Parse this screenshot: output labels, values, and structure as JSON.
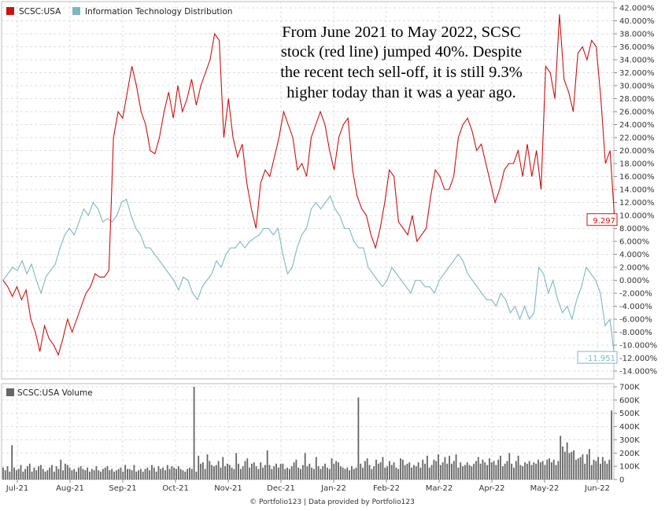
{
  "chart_data": [
    {
      "type": "line",
      "title": "",
      "xlabel": "",
      "ylabel": "",
      "ylim": [
        -14,
        42
      ],
      "y_tick_step": 2,
      "y_tick_suffix": "%",
      "y_tick_decimals": 3,
      "x_tick_labels": [
        "Jul-21",
        "Aug-21",
        "Sep-21",
        "Oct-21",
        "Nov-21",
        "Dec-21",
        "Jan-22",
        "Feb-22",
        "Mar-22",
        "Apr-22",
        "May-22",
        "Jun-22"
      ],
      "legend": "top-left",
      "grid": true,
      "series": [
        {
          "name": "SCSC:USA",
          "color": "#cc1111",
          "end_label": "9.297",
          "values": [
            0,
            -1,
            -2.5,
            -1,
            -3,
            -1.5,
            -6,
            -8,
            -11,
            -7,
            -9,
            -10,
            -11.5,
            -9,
            -6,
            -8,
            -6,
            -4,
            -2,
            -1,
            1,
            0.5,
            0.5,
            1.5,
            22,
            26,
            25,
            29,
            33,
            30,
            26,
            24,
            20,
            19.5,
            22,
            26,
            29,
            25,
            30,
            26,
            28,
            31,
            27,
            30,
            32,
            34,
            38,
            37,
            22,
            28,
            22,
            19,
            21,
            15,
            11,
            8,
            15,
            17,
            16,
            19,
            22,
            26,
            24,
            22,
            17,
            18,
            16,
            22,
            24,
            26,
            24,
            20,
            17,
            22,
            24,
            25,
            17,
            13,
            11,
            10,
            7,
            5,
            8,
            12,
            17,
            16,
            9,
            8,
            7,
            10,
            6,
            7,
            8,
            13,
            17,
            16,
            14,
            14,
            16,
            22,
            24,
            25,
            23,
            20,
            21,
            18,
            15,
            12,
            14,
            17,
            18,
            18,
            20,
            16,
            21,
            16,
            20,
            14,
            33,
            32,
            28,
            41,
            31,
            29,
            26,
            35,
            36,
            34,
            37,
            36,
            28,
            18,
            20,
            9.3
          ],
          "label_in_chart": "SCSC:USA"
        },
        {
          "name": "Information Technology Distribution",
          "color": "#7fb7bf",
          "end_label": "-11.951",
          "values": [
            0,
            1,
            2,
            1.5,
            3,
            1,
            2.5,
            0,
            -2,
            0.5,
            1.5,
            2.5,
            5,
            7,
            8,
            7,
            9,
            11,
            10,
            12,
            11,
            9,
            9.5,
            9,
            10,
            12,
            12.5,
            10,
            8,
            7,
            5,
            5,
            4,
            3,
            2,
            1,
            0,
            -1.5,
            0.5,
            0,
            -2,
            -3,
            -1,
            0,
            1,
            3,
            2,
            4,
            5,
            5,
            6,
            5,
            6,
            6.5,
            7,
            8,
            8,
            7,
            8,
            4,
            1,
            2,
            5,
            7,
            8,
            11,
            12,
            11,
            12,
            13,
            11,
            10,
            8,
            8,
            6,
            5,
            5,
            2,
            1,
            0,
            -1,
            0,
            2,
            1,
            0,
            -1,
            -2,
            0,
            0,
            -1,
            -1,
            -2,
            0,
            1,
            2,
            3,
            4,
            3,
            1,
            0,
            -1,
            -2,
            -3,
            -3,
            -4,
            -2,
            -3,
            -5,
            -4,
            -6,
            -4,
            -6,
            -5,
            2,
            1,
            -2,
            0,
            -3,
            -5,
            -4,
            -6,
            -3,
            -1,
            2,
            1,
            0,
            -2,
            -7,
            -6,
            -11.95
          ]
        }
      ],
      "annotation": [
        "From June 2021 to May 2022, SCSC",
        "stock (red line) jumped 40%. Despite",
        "the recent tech sell-off, it is still 9.3%",
        "higher today than it was a year ago."
      ]
    },
    {
      "type": "bar",
      "title": "",
      "legend": "top-left",
      "series_name": "SCSC:USA Volume",
      "color": "#666666",
      "ylim": [
        0,
        700000
      ],
      "y_tick_labels": [
        "0",
        "100K",
        "200K",
        "300K",
        "400K",
        "500K",
        "600K",
        "700K"
      ],
      "values": [
        90,
        70,
        100,
        60,
        260,
        90,
        70,
        80,
        110,
        60,
        80,
        100,
        120,
        60,
        90,
        70,
        100,
        110,
        80,
        60,
        70,
        90,
        110,
        60,
        100,
        80,
        150,
        70,
        120,
        110,
        90,
        70,
        80,
        60,
        90,
        100,
        80,
        70,
        90,
        60,
        80,
        70,
        100,
        70,
        60,
        80,
        90,
        100,
        70,
        80,
        60,
        70,
        80,
        90,
        60,
        110,
        80,
        80,
        70,
        110,
        60,
        70,
        80,
        60,
        80,
        90,
        70,
        110,
        90,
        60,
        100,
        80,
        90,
        70,
        110,
        80,
        100,
        90,
        80,
        100,
        80,
        70,
        60,
        80,
        90,
        80,
        700,
        60,
        180,
        120,
        130,
        80,
        190,
        140,
        110,
        100,
        110,
        140,
        90,
        170,
        100,
        120,
        110,
        90,
        80,
        200,
        120,
        80,
        100,
        140,
        160,
        90,
        120,
        130,
        100,
        80,
        130,
        90,
        110,
        220,
        110,
        80,
        100,
        120,
        90,
        120,
        120,
        80,
        90,
        80,
        100,
        130,
        150,
        90,
        80,
        110,
        200,
        100,
        120,
        90,
        80,
        170,
        100,
        80,
        100,
        120,
        90,
        80,
        160,
        120,
        140,
        130,
        100,
        90,
        80,
        90,
        70,
        100,
        80,
        90,
        620,
        120,
        90,
        140,
        160,
        110,
        80,
        100,
        150,
        120,
        130,
        170,
        90,
        100,
        140,
        110,
        130,
        90,
        80,
        160,
        150,
        110,
        120,
        130,
        90,
        110,
        100,
        130,
        90,
        150,
        120,
        180,
        90,
        110,
        150,
        140,
        190,
        110,
        130,
        170,
        120,
        180,
        120,
        140,
        190,
        90,
        130,
        100,
        110,
        130,
        110,
        100,
        120,
        140,
        170,
        120,
        150,
        130,
        110,
        160,
        130,
        140,
        110,
        150,
        180,
        100,
        120,
        140,
        200,
        120,
        90,
        140,
        180,
        110,
        100,
        130,
        120,
        140,
        110,
        130,
        120,
        150,
        130,
        140,
        110,
        150,
        160,
        130,
        150,
        110,
        140,
        330,
        250,
        210,
        280,
        200,
        210,
        220,
        150,
        160,
        170,
        190,
        120,
        190,
        230,
        110,
        150,
        140,
        170,
        120,
        170,
        140,
        120,
        150,
        520
      ]
    }
  ],
  "footer": "© Portfolio123 | Data provided by Portfolio123"
}
